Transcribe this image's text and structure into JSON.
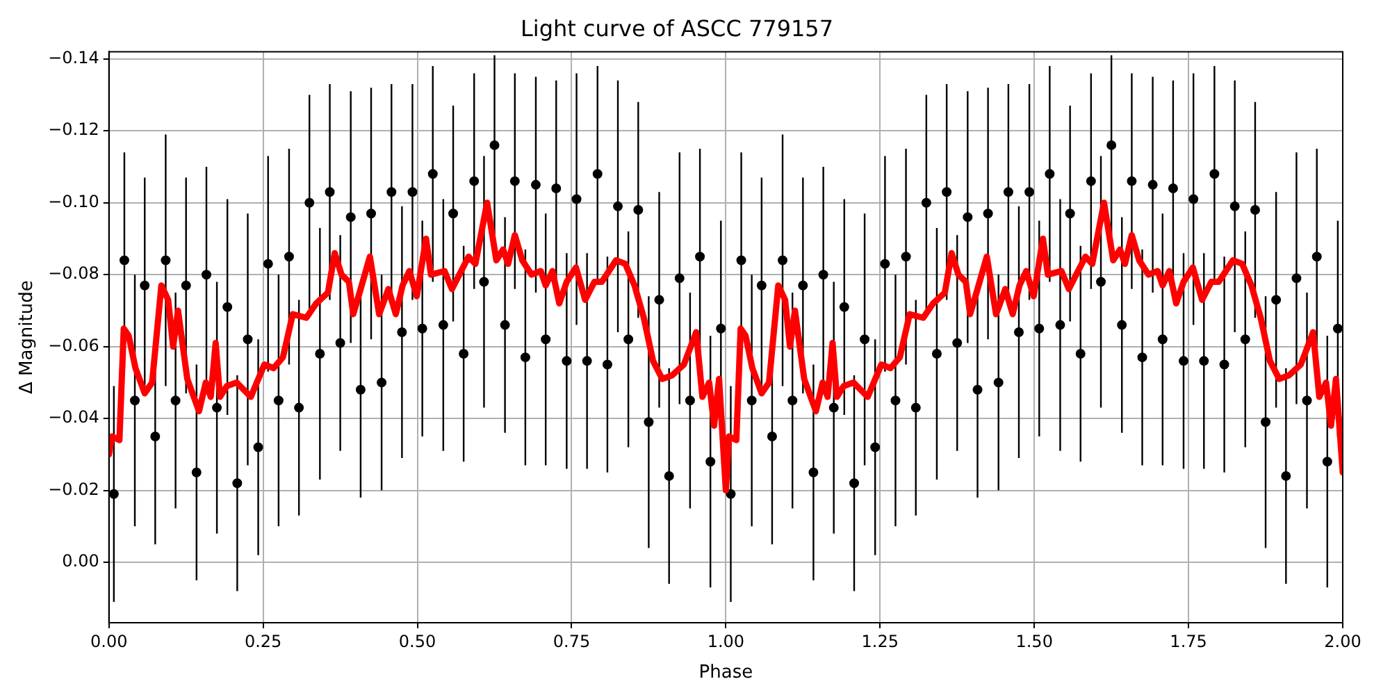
{
  "chart_data": {
    "type": "scatter",
    "title": "Light curve of ASCC 779157",
    "xlabel": "Phase",
    "ylabel": "Δ Magnitude",
    "xlim": [
      0,
      2
    ],
    "xticks": [
      {
        "value": 0,
        "label": "0.00"
      },
      {
        "value": 0.25,
        "label": "0.25"
      },
      {
        "value": 0.5,
        "label": "0.50"
      },
      {
        "value": 0.75,
        "label": "0.75"
      },
      {
        "value": 1,
        "label": "1.00"
      },
      {
        "value": 1.25,
        "label": "1.25"
      },
      {
        "value": 1.5,
        "label": "1.50"
      },
      {
        "value": 1.75,
        "label": "1.75"
      },
      {
        "value": 2,
        "label": "2.00"
      }
    ],
    "ylim": [
      0.0168,
      -0.142
    ],
    "yticks": [
      {
        "value": -0.14,
        "label": "−0.14"
      },
      {
        "value": -0.12,
        "label": "−0.12"
      },
      {
        "value": -0.1,
        "label": "−0.10"
      },
      {
        "value": -0.08,
        "label": "−0.08"
      },
      {
        "value": -0.06,
        "label": "−0.06"
      },
      {
        "value": -0.04,
        "label": "−0.04"
      },
      {
        "value": -0.02,
        "label": "−0.02"
      },
      {
        "value": 0,
        "label": "0.00"
      }
    ],
    "grid": true,
    "legend": false,
    "series": [
      {
        "type": "scatter",
        "color": "#000000",
        "marker": "circle",
        "x": [
          0.008,
          0.025,
          0.042,
          0.058,
          0.075,
          0.092,
          0.108,
          0.125,
          0.142,
          0.158,
          0.175,
          0.192,
          0.208,
          0.225,
          0.242,
          0.258,
          0.275,
          0.292,
          0.308,
          0.325,
          0.342,
          0.358,
          0.375,
          0.392,
          0.408,
          0.425,
          0.442,
          0.458,
          0.475,
          0.492,
          0.508,
          0.525,
          0.542,
          0.558,
          0.575,
          0.592,
          0.608,
          0.625,
          0.642,
          0.658,
          0.675,
          0.692,
          0.708,
          0.725,
          0.742,
          0.758,
          0.775,
          0.792,
          0.808,
          0.825,
          0.842,
          0.858,
          0.875,
          0.892,
          0.908,
          0.925,
          0.942,
          0.958,
          0.975,
          0.992,
          1.008,
          1.025,
          1.042,
          1.058,
          1.075,
          1.092,
          1.108,
          1.125,
          1.142,
          1.158,
          1.175,
          1.192,
          1.208,
          1.225,
          1.242,
          1.258,
          1.275,
          1.292,
          1.308,
          1.325,
          1.342,
          1.358,
          1.375,
          1.392,
          1.408,
          1.425,
          1.442,
          1.458,
          1.475,
          1.492,
          1.508,
          1.525,
          1.542,
          1.558,
          1.575,
          1.592,
          1.608,
          1.625,
          1.642,
          1.658,
          1.675,
          1.692,
          1.708,
          1.725,
          1.742,
          1.758,
          1.775,
          1.792,
          1.808,
          1.825,
          1.842,
          1.858,
          1.875,
          1.892,
          1.908,
          1.925,
          1.942,
          1.958,
          1.975,
          1.992
        ],
        "values": [
          -0.019,
          -0.084,
          -0.045,
          -0.077,
          -0.035,
          -0.084,
          -0.045,
          -0.077,
          -0.025,
          -0.08,
          -0.043,
          -0.071,
          -0.022,
          -0.062,
          -0.032,
          -0.083,
          -0.045,
          -0.085,
          -0.043,
          -0.1,
          -0.058,
          -0.103,
          -0.061,
          -0.096,
          -0.048,
          -0.097,
          -0.05,
          -0.103,
          -0.064,
          -0.103,
          -0.065,
          -0.108,
          -0.066,
          -0.097,
          -0.058,
          -0.106,
          -0.078,
          -0.116,
          -0.066,
          -0.106,
          -0.057,
          -0.105,
          -0.062,
          -0.104,
          -0.056,
          -0.101,
          -0.056,
          -0.108,
          -0.055,
          -0.099,
          -0.062,
          -0.098,
          -0.039,
          -0.073,
          -0.024,
          -0.079,
          -0.045,
          -0.085,
          -0.028,
          -0.065,
          -0.019,
          -0.084,
          -0.045,
          -0.077,
          -0.035,
          -0.084,
          -0.045,
          -0.077,
          -0.025,
          -0.08,
          -0.043,
          -0.071,
          -0.022,
          -0.062,
          -0.032,
          -0.083,
          -0.045,
          -0.085,
          -0.043,
          -0.1,
          -0.058,
          -0.103,
          -0.061,
          -0.096,
          -0.048,
          -0.097,
          -0.05,
          -0.103,
          -0.064,
          -0.103,
          -0.065,
          -0.108,
          -0.066,
          -0.097,
          -0.058,
          -0.106,
          -0.078,
          -0.116,
          -0.066,
          -0.106,
          -0.057,
          -0.105,
          -0.062,
          -0.104,
          -0.056,
          -0.101,
          -0.056,
          -0.108,
          -0.055,
          -0.099,
          -0.062,
          -0.098,
          -0.039,
          -0.073,
          -0.024,
          -0.079,
          -0.045,
          -0.085,
          -0.028,
          -0.065
        ],
        "errors": [
          0.03,
          0.03,
          0.035,
          0.03,
          0.03,
          0.035,
          0.03,
          0.03,
          0.03,
          0.03,
          0.035,
          0.03,
          0.03,
          0.035,
          0.03,
          0.03,
          0.035,
          0.03,
          0.03,
          0.03,
          0.035,
          0.03,
          0.03,
          0.035,
          0.03,
          0.035,
          0.03,
          0.03,
          0.035,
          0.03,
          0.03,
          0.03,
          0.035,
          0.03,
          0.03,
          0.03,
          0.035,
          0.025,
          0.03,
          0.03,
          0.03,
          0.03,
          0.035,
          0.03,
          0.03,
          0.035,
          0.03,
          0.03,
          0.03,
          0.035,
          0.03,
          0.03,
          0.035,
          0.03,
          0.03,
          0.035,
          0.03,
          0.03,
          0.035,
          0.03,
          0.03,
          0.03,
          0.035,
          0.03,
          0.03,
          0.035,
          0.03,
          0.03,
          0.03,
          0.03,
          0.035,
          0.03,
          0.03,
          0.035,
          0.03,
          0.03,
          0.035,
          0.03,
          0.03,
          0.03,
          0.035,
          0.03,
          0.03,
          0.035,
          0.03,
          0.035,
          0.03,
          0.03,
          0.035,
          0.03,
          0.03,
          0.03,
          0.035,
          0.03,
          0.03,
          0.03,
          0.035,
          0.025,
          0.03,
          0.03,
          0.03,
          0.03,
          0.035,
          0.03,
          0.03,
          0.035,
          0.03,
          0.03,
          0.03,
          0.035,
          0.03,
          0.03,
          0.035,
          0.03,
          0.03,
          0.035,
          0.03,
          0.03,
          0.035,
          0.03
        ]
      },
      {
        "type": "line",
        "color": "#ff0000",
        "marker": "none",
        "x": [
          0,
          0.005,
          0.017,
          0.024,
          0.032,
          0.043,
          0.058,
          0.07,
          0.085,
          0.096,
          0.104,
          0.112,
          0.127,
          0.146,
          0.157,
          0.165,
          0.173,
          0.18,
          0.191,
          0.207,
          0.23,
          0.252,
          0.267,
          0.282,
          0.298,
          0.32,
          0.336,
          0.355,
          0.366,
          0.377,
          0.389,
          0.396,
          0.408,
          0.423,
          0.438,
          0.453,
          0.465,
          0.476,
          0.487,
          0.499,
          0.514,
          0.522,
          0.544,
          0.556,
          0.583,
          0.594,
          0.613,
          0.628,
          0.639,
          0.647,
          0.658,
          0.67,
          0.685,
          0.7,
          0.708,
          0.719,
          0.73,
          0.742,
          0.757,
          0.772,
          0.787,
          0.799,
          0.822,
          0.837,
          0.852,
          0.867,
          0.882,
          0.897,
          0.913,
          0.932,
          0.952,
          0.962,
          0.973,
          0.981,
          0.989,
          1,
          1.005,
          1.017,
          1.024,
          1.032,
          1.043,
          1.058,
          1.07,
          1.085,
          1.096,
          1.104,
          1.112,
          1.127,
          1.146,
          1.157,
          1.165,
          1.173,
          1.18,
          1.191,
          1.207,
          1.23,
          1.252,
          1.267,
          1.282,
          1.298,
          1.32,
          1.336,
          1.355,
          1.366,
          1.377,
          1.389,
          1.396,
          1.408,
          1.423,
          1.438,
          1.453,
          1.465,
          1.476,
          1.487,
          1.499,
          1.514,
          1.522,
          1.544,
          1.556,
          1.583,
          1.594,
          1.613,
          1.628,
          1.639,
          1.647,
          1.658,
          1.67,
          1.685,
          1.7,
          1.708,
          1.719,
          1.73,
          1.742,
          1.757,
          1.772,
          1.787,
          1.799,
          1.822,
          1.837,
          1.852,
          1.867,
          1.882,
          1.897,
          1.913,
          1.932,
          1.952,
          1.962,
          1.973,
          1.981,
          1.989,
          2
        ],
        "values": [
          -0.03,
          -0.035,
          -0.034,
          -0.065,
          -0.063,
          -0.054,
          -0.047,
          -0.05,
          -0.077,
          -0.073,
          -0.06,
          -0.07,
          -0.051,
          -0.042,
          -0.05,
          -0.046,
          -0.061,
          -0.046,
          -0.049,
          -0.05,
          -0.046,
          -0.055,
          -0.054,
          -0.057,
          -0.069,
          -0.068,
          -0.072,
          -0.075,
          -0.086,
          -0.08,
          -0.078,
          -0.069,
          -0.076,
          -0.085,
          -0.069,
          -0.076,
          -0.069,
          -0.077,
          -0.081,
          -0.074,
          -0.09,
          -0.08,
          -0.081,
          -0.076,
          -0.085,
          -0.083,
          -0.1,
          -0.084,
          -0.087,
          -0.083,
          -0.091,
          -0.084,
          -0.08,
          -0.081,
          -0.077,
          -0.081,
          -0.072,
          -0.078,
          -0.082,
          -0.073,
          -0.078,
          -0.078,
          -0.084,
          -0.083,
          -0.077,
          -0.068,
          -0.056,
          -0.051,
          -0.052,
          -0.055,
          -0.064,
          -0.046,
          -0.05,
          -0.038,
          -0.051,
          -0.02,
          -0.035,
          -0.034,
          -0.065,
          -0.063,
          -0.054,
          -0.047,
          -0.05,
          -0.077,
          -0.073,
          -0.06,
          -0.07,
          -0.051,
          -0.042,
          -0.05,
          -0.046,
          -0.061,
          -0.046,
          -0.049,
          -0.05,
          -0.046,
          -0.055,
          -0.054,
          -0.057,
          -0.069,
          -0.068,
          -0.072,
          -0.075,
          -0.086,
          -0.08,
          -0.078,
          -0.069,
          -0.076,
          -0.085,
          -0.069,
          -0.076,
          -0.069,
          -0.077,
          -0.081,
          -0.074,
          -0.09,
          -0.08,
          -0.081,
          -0.076,
          -0.085,
          -0.083,
          -0.1,
          -0.084,
          -0.087,
          -0.083,
          -0.091,
          -0.084,
          -0.08,
          -0.081,
          -0.077,
          -0.081,
          -0.072,
          -0.078,
          -0.082,
          -0.073,
          -0.078,
          -0.078,
          -0.084,
          -0.083,
          -0.077,
          -0.068,
          -0.056,
          -0.051,
          -0.052,
          -0.055,
          -0.064,
          -0.046,
          -0.05,
          -0.038,
          -0.051,
          -0.025
        ]
      }
    ]
  }
}
